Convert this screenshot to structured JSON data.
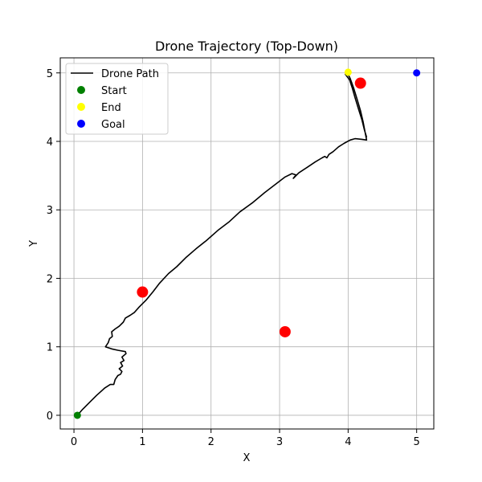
{
  "chart_data": {
    "type": "scatter",
    "title": "Drone Trajectory (Top-Down)",
    "xlabel": "X",
    "ylabel": "Y",
    "xlim": [
      -0.2,
      5.25
    ],
    "ylim": [
      -0.2,
      5.22
    ],
    "xticks": [
      "0",
      "1",
      "2",
      "3",
      "4",
      "5"
    ],
    "yticks": [
      "0",
      "1",
      "2",
      "3",
      "4",
      "5"
    ],
    "grid": true,
    "legend_position": "top-left",
    "legend": [
      "Drone Path",
      "Start",
      "End",
      "Goal"
    ],
    "series": [
      {
        "name": "Drone Path",
        "kind": "line",
        "color": "#000000",
        "points": [
          [
            0.05,
            0.0
          ],
          [
            0.12,
            0.08
          ],
          [
            0.22,
            0.18
          ],
          [
            0.33,
            0.29
          ],
          [
            0.45,
            0.4
          ],
          [
            0.53,
            0.45
          ],
          [
            0.58,
            0.45
          ],
          [
            0.6,
            0.52
          ],
          [
            0.64,
            0.58
          ],
          [
            0.68,
            0.6
          ],
          [
            0.7,
            0.64
          ],
          [
            0.66,
            0.68
          ],
          [
            0.71,
            0.72
          ],
          [
            0.68,
            0.77
          ],
          [
            0.73,
            0.8
          ],
          [
            0.7,
            0.85
          ],
          [
            0.76,
            0.9
          ],
          [
            0.75,
            0.93
          ],
          [
            0.64,
            0.95
          ],
          [
            0.55,
            0.97
          ],
          [
            0.46,
            1.0
          ],
          [
            0.5,
            1.06
          ],
          [
            0.52,
            1.12
          ],
          [
            0.56,
            1.15
          ],
          [
            0.55,
            1.22
          ],
          [
            0.6,
            1.26
          ],
          [
            0.66,
            1.3
          ],
          [
            0.72,
            1.36
          ],
          [
            0.75,
            1.42
          ],
          [
            0.82,
            1.46
          ],
          [
            0.88,
            1.5
          ],
          [
            0.95,
            1.58
          ],
          [
            1.05,
            1.68
          ],
          [
            1.15,
            1.8
          ],
          [
            1.25,
            1.93
          ],
          [
            1.38,
            2.07
          ],
          [
            1.5,
            2.17
          ],
          [
            1.63,
            2.3
          ],
          [
            1.78,
            2.43
          ],
          [
            1.93,
            2.55
          ],
          [
            2.1,
            2.7
          ],
          [
            2.27,
            2.83
          ],
          [
            2.42,
            2.97
          ],
          [
            2.6,
            3.1
          ],
          [
            2.78,
            3.25
          ],
          [
            2.95,
            3.38
          ],
          [
            3.08,
            3.48
          ],
          [
            3.18,
            3.53
          ],
          [
            3.24,
            3.51
          ],
          [
            3.2,
            3.46
          ],
          [
            3.28,
            3.54
          ],
          [
            3.4,
            3.62
          ],
          [
            3.52,
            3.7
          ],
          [
            3.62,
            3.76
          ],
          [
            3.66,
            3.78
          ],
          [
            3.69,
            3.76
          ],
          [
            3.72,
            3.81
          ],
          [
            3.78,
            3.85
          ],
          [
            3.86,
            3.92
          ],
          [
            3.94,
            3.97
          ],
          [
            4.03,
            4.02
          ],
          [
            4.1,
            4.04
          ],
          [
            4.2,
            4.03
          ],
          [
            4.27,
            4.02
          ],
          [
            4.25,
            4.12
          ],
          [
            4.22,
            4.28
          ],
          [
            4.18,
            4.45
          ],
          [
            4.13,
            4.62
          ],
          [
            4.08,
            4.78
          ],
          [
            4.03,
            4.92
          ],
          [
            3.98,
            5.02
          ],
          [
            3.96,
            4.98
          ],
          [
            4.02,
            4.9
          ],
          [
            4.06,
            4.78
          ],
          [
            4.1,
            4.64
          ],
          [
            4.15,
            4.48
          ],
          [
            4.2,
            4.32
          ],
          [
            4.24,
            4.16
          ],
          [
            4.27,
            4.06
          ]
        ]
      },
      {
        "name": "Start",
        "kind": "scatter",
        "color": "#008000",
        "points": [
          [
            0.05,
            0.0
          ]
        ]
      },
      {
        "name": "End",
        "kind": "scatter",
        "color": "#ffff00",
        "points": [
          [
            4.0,
            5.01
          ]
        ]
      },
      {
        "name": "Goal",
        "kind": "scatter",
        "color": "#0000ff",
        "points": [
          [
            5.0,
            5.0
          ]
        ]
      },
      {
        "name": "",
        "kind": "obstacle",
        "color": "#ff0000",
        "points": [
          [
            1.0,
            1.8
          ],
          [
            3.08,
            1.22
          ],
          [
            4.18,
            4.85
          ]
        ]
      }
    ]
  }
}
